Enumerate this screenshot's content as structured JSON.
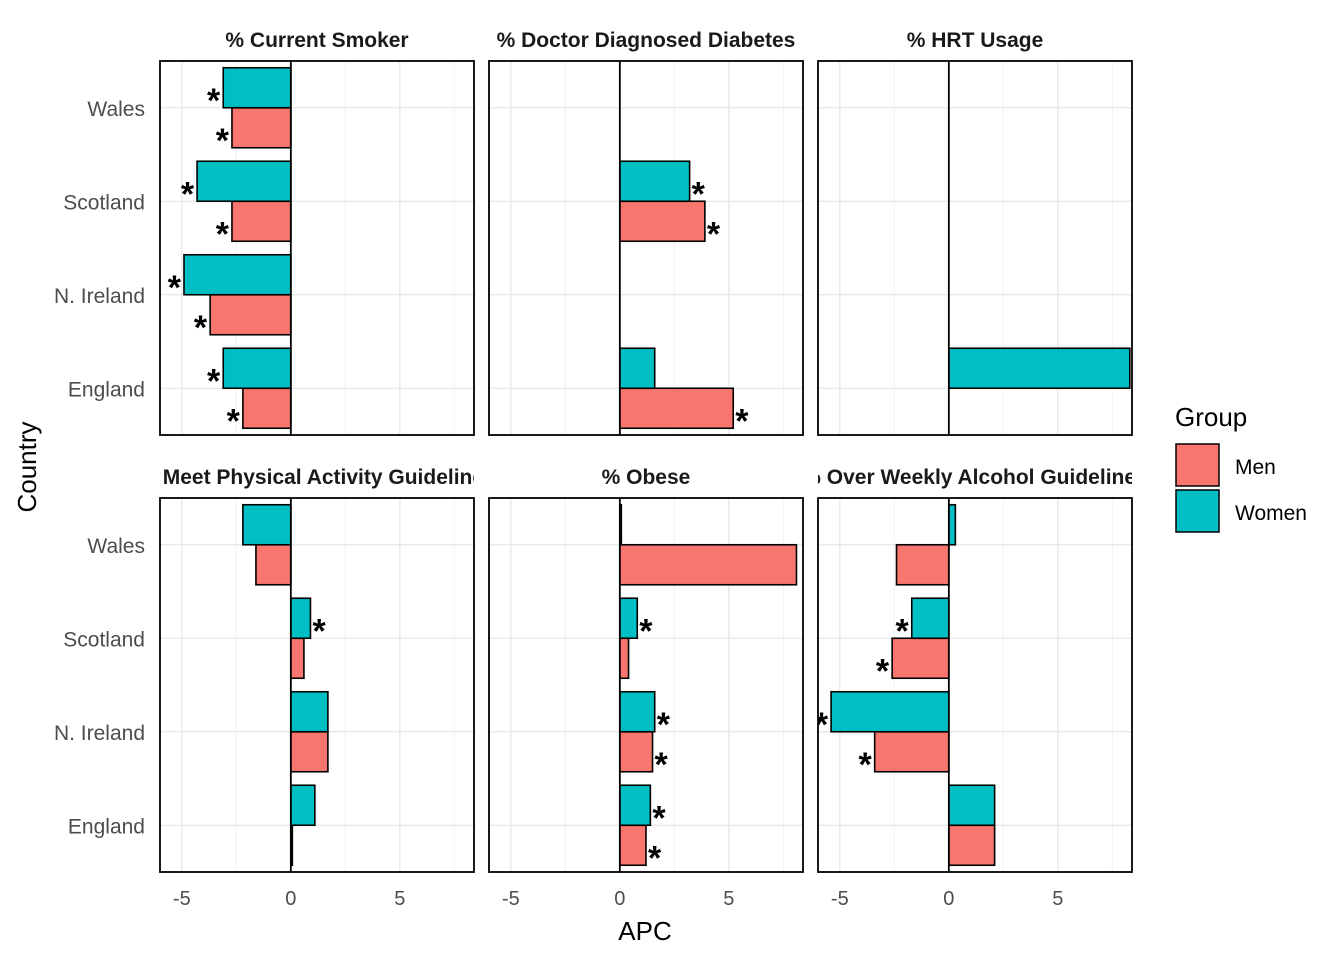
{
  "chart_data": {
    "type": "bar",
    "orientation": "horizontal",
    "xlabel": "APC",
    "ylabel": "Country",
    "xlim": [
      -6,
      8.4
    ],
    "x_ticks": [
      -5,
      0,
      5
    ],
    "grid": true,
    "categories": [
      "England",
      "N. Ireland",
      "Scotland",
      "Wales"
    ],
    "legend": {
      "title": "Group",
      "placement": "right",
      "entries": [
        {
          "name": "Men",
          "color": "#F8766D"
        },
        {
          "name": "Women",
          "color": "#00BFC4"
        }
      ]
    },
    "significance_marker": "*",
    "panels": [
      {
        "title": "% Current Smoker",
        "series": [
          {
            "name": "Men",
            "values": [
              -2.2,
              -3.7,
              -2.7,
              -2.7
            ],
            "significant": [
              true,
              true,
              true,
              true
            ]
          },
          {
            "name": "Women",
            "values": [
              -3.1,
              -4.9,
              -4.3,
              -3.1
            ],
            "significant": [
              true,
              true,
              true,
              true
            ]
          }
        ]
      },
      {
        "title": "% Doctor Diagnosed Diabetes",
        "series": [
          {
            "name": "Men",
            "values": [
              5.2,
              null,
              3.9,
              null
            ],
            "significant": [
              true,
              false,
              true,
              false
            ]
          },
          {
            "name": "Women",
            "values": [
              1.6,
              null,
              3.2,
              null
            ],
            "significant": [
              false,
              false,
              true,
              false
            ]
          }
        ]
      },
      {
        "title": "% HRT Usage",
        "series": [
          {
            "name": "Men",
            "values": [
              null,
              null,
              null,
              null
            ],
            "significant": [
              false,
              false,
              false,
              false
            ]
          },
          {
            "name": "Women",
            "values": [
              8.3,
              null,
              null,
              null
            ],
            "significant": [
              true,
              false,
              false,
              false
            ]
          }
        ]
      },
      {
        "title": "% Meet Physical Activity Guidelines",
        "series": [
          {
            "name": "Men",
            "values": [
              0.0,
              1.7,
              0.6,
              -1.6
            ],
            "significant": [
              false,
              false,
              false,
              false
            ]
          },
          {
            "name": "Women",
            "values": [
              1.1,
              1.7,
              0.9,
              -2.2
            ],
            "significant": [
              false,
              false,
              true,
              false
            ]
          }
        ]
      },
      {
        "title": "% Obese",
        "series": [
          {
            "name": "Men",
            "values": [
              1.2,
              1.5,
              0.4,
              8.1
            ],
            "significant": [
              true,
              true,
              false,
              false
            ]
          },
          {
            "name": "Women",
            "values": [
              1.4,
              1.6,
              0.8,
              0.0
            ],
            "significant": [
              true,
              true,
              true,
              false
            ]
          }
        ]
      },
      {
        "title": "% Over Weekly Alcohol Guidelines",
        "series": [
          {
            "name": "Men",
            "values": [
              2.1,
              -3.4,
              -2.6,
              -2.4
            ],
            "significant": [
              false,
              true,
              true,
              false
            ]
          },
          {
            "name": "Women",
            "values": [
              2.1,
              -5.4,
              -1.7,
              0.3
            ],
            "significant": [
              false,
              true,
              true,
              false
            ]
          }
        ]
      }
    ]
  }
}
